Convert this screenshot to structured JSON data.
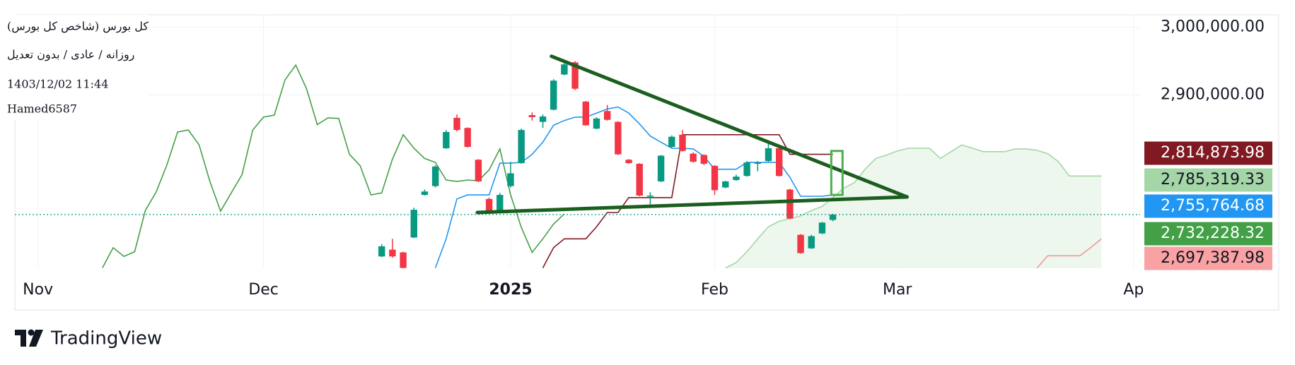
{
  "header": {
    "title": "کل بورس (شاخص کل بورس)",
    "subtitle": "روزانه / عادی / بدون تعدیل",
    "timestamp": "1403/12/02 11:44",
    "author": "Hamed6587"
  },
  "footer": {
    "brand": "TradingView"
  },
  "chart_data": {
    "type": "candlestick",
    "up_color": "#089981",
    "down_color": "#f23645",
    "xlim": [
      -2.15,
      102.6
    ],
    "xticks": [
      {
        "value": 0,
        "label": "Nov"
      },
      {
        "value": 21,
        "label": "Dec"
      },
      {
        "value": 44,
        "label": "2025"
      },
      {
        "value": 63,
        "label": "Feb"
      },
      {
        "value": 80,
        "label": "Mar"
      },
      {
        "value": 102,
        "label": "Ap"
      }
    ],
    "ylim": [
      2643500,
      3018300
    ],
    "yticks": [
      {
        "value": 3000000,
        "label": "3,000,000.00"
      },
      {
        "value": 2900000,
        "label": "2,900,000.00"
      }
    ],
    "grid": true,
    "x": [
      32,
      33,
      34,
      35,
      36,
      37,
      38,
      39,
      40,
      41,
      42,
      43,
      44,
      45,
      46,
      47,
      48,
      49,
      50,
      51,
      52,
      53,
      54,
      55,
      56,
      57,
      58,
      59,
      60,
      61,
      62,
      63,
      64,
      65,
      66,
      67,
      68,
      69,
      70,
      71,
      72,
      73,
      74
    ],
    "open": [
      2661000,
      2671000,
      2667000,
      2689000,
      2752000,
      2765000,
      2821000,
      2866000,
      2851000,
      2804000,
      2746000,
      2729000,
      2765000,
      2799000,
      2870000,
      2860000,
      2878000,
      2930000,
      2948000,
      2890000,
      2850000,
      2876000,
      2860000,
      2804000,
      2798000,
      2750000,
      2772000,
      2823000,
      2841000,
      2813000,
      2811000,
      2795000,
      2763000,
      2774000,
      2780000,
      2798000,
      2802000,
      2821000,
      2760000,
      2693000,
      2673000,
      2695000,
      2715000
    ],
    "high": [
      2679000,
      2687000,
      2668000,
      2733000,
      2760000,
      2796000,
      2848000,
      2871000,
      2852000,
      2805000,
      2748000,
      2755000,
      2801000,
      2850000,
      2874000,
      2871000,
      2923000,
      2952000,
      2950000,
      2891000,
      2867000,
      2885000,
      2861000,
      2805000,
      2799000,
      2756000,
      2811000,
      2840000,
      2848000,
      2815000,
      2812000,
      2796000,
      2773000,
      2782000,
      2802000,
      2802000,
      2828000,
      2823000,
      2761000,
      2694000,
      2693000,
      2712000,
      2724000
    ],
    "low": [
      2660000,
      2659000,
      2643000,
      2688000,
      2751000,
      2763000,
      2820000,
      2846000,
      2822000,
      2771000,
      2726000,
      2728000,
      2763000,
      2798000,
      2862000,
      2851000,
      2877000,
      2929000,
      2907000,
      2854000,
      2849000,
      2862000,
      2811000,
      2798000,
      2750000,
      2738000,
      2771000,
      2822000,
      2816000,
      2800000,
      2796000,
      2752000,
      2762000,
      2773000,
      2779000,
      2787000,
      2801000,
      2779000,
      2716000,
      2665000,
      2672000,
      2694000,
      2713000
    ],
    "close": [
      2676000,
      2661000,
      2644000,
      2730000,
      2757000,
      2794000,
      2845000,
      2848000,
      2823000,
      2772000,
      2727000,
      2752000,
      2784000,
      2848000,
      2867000,
      2868000,
      2921000,
      2945000,
      2909000,
      2855000,
      2865000,
      2863000,
      2812000,
      2799000,
      2751000,
      2751000,
      2810000,
      2838000,
      2817000,
      2801000,
      2798000,
      2759000,
      2772000,
      2779000,
      2800000,
      2800000,
      2821000,
      2780000,
      2717000,
      2666000,
      2691000,
      2711000,
      2723000
    ],
    "last_price_line": true,
    "lines": [
      {
        "color": "#a5d6a7",
        "fill": "#e8f5e9",
        "x": [
          64,
          65,
          66,
          67,
          68,
          69,
          70,
          71,
          72,
          73,
          74,
          75,
          76,
          77,
          78,
          79,
          80,
          81,
          82,
          83,
          84,
          85,
          86,
          87,
          88,
          89,
          90,
          91,
          92,
          93,
          94,
          95,
          96,
          97,
          98,
          99
        ],
        "values": [
          2644000,
          2652000,
          2668000,
          2687000,
          2705000,
          2713000,
          2717000,
          2721000,
          2729000,
          2735000,
          2748000,
          2762000,
          2770000,
          2790000,
          2806000,
          2811000,
          2817000,
          2821000,
          2821000,
          2821000,
          2806000,
          2816000,
          2826000,
          2821000,
          2816000,
          2816000,
          2816000,
          2820000,
          2820000,
          2818000,
          2813000,
          2801000,
          2780000,
          2780000,
          2780000,
          2780000
        ]
      },
      {
        "color": "#ef9a9a",
        "x": [
          93,
          94,
          95,
          96,
          97,
          98,
          99
        ],
        "values": [
          2644000,
          2662000,
          2662000,
          2662000,
          2662000,
          2674000,
          2687000
        ]
      },
      {
        "color": "#43a047",
        "x": [
          6,
          7,
          8,
          9,
          10,
          11,
          12,
          13,
          14,
          15,
          16,
          17,
          18,
          19,
          20,
          21,
          22,
          23,
          24,
          25,
          26,
          27,
          28,
          29,
          30,
          31,
          32,
          33,
          34,
          35,
          36,
          37,
          38,
          39,
          40,
          41,
          42,
          43,
          44,
          45,
          46,
          47,
          48,
          49
        ],
        "values": [
          2644000,
          2674000,
          2661000,
          2668000,
          2729000,
          2756000,
          2796000,
          2845000,
          2848000,
          2826000,
          2772000,
          2728000,
          2755000,
          2782000,
          2848000,
          2867000,
          2870000,
          2922000,
          2944000,
          2909000,
          2856000,
          2866000,
          2865000,
          2812000,
          2795000,
          2752000,
          2755000,
          2805000,
          2841000,
          2821000,
          2806000,
          2800000,
          2774000,
          2772000,
          2774000,
          2773000,
          2789000,
          2820000,
          2752000,
          2704000,
          2667000,
          2687000,
          2709000,
          2724000
        ]
      },
      {
        "color": "#2196f3",
        "x": [
          37,
          38,
          39,
          40,
          41,
          42,
          43,
          44,
          45,
          46,
          47,
          48,
          49,
          50,
          51,
          52,
          53,
          54,
          55,
          56,
          57,
          58,
          59,
          60,
          61,
          62,
          63,
          64,
          65,
          66,
          67,
          68,
          69,
          70,
          71,
          72,
          73,
          74
        ],
        "values": [
          2644000,
          2687000,
          2746000,
          2752000,
          2752000,
          2752000,
          2799000,
          2799000,
          2800000,
          2812000,
          2830000,
          2855000,
          2862000,
          2867000,
          2867000,
          2873000,
          2879000,
          2882000,
          2873000,
          2857000,
          2839000,
          2830000,
          2821000,
          2821000,
          2820000,
          2809000,
          2790000,
          2790000,
          2790000,
          2800000,
          2800000,
          2800000,
          2800000,
          2778000,
          2750000,
          2750000,
          2750000,
          2752000
        ]
      },
      {
        "color": "#801922",
        "x": [
          47,
          48,
          49,
          50,
          51,
          52,
          53,
          54,
          55,
          56,
          57,
          58,
          59,
          60,
          61,
          62,
          63,
          64,
          65,
          66,
          67,
          68,
          69,
          70,
          71,
          72,
          73,
          74
        ],
        "values": [
          2644000,
          2674000,
          2687000,
          2687000,
          2687000,
          2705000,
          2726000,
          2726000,
          2748000,
          2748000,
          2748000,
          2748000,
          2748000,
          2841000,
          2841000,
          2841000,
          2841000,
          2841000,
          2841000,
          2841000,
          2841000,
          2841000,
          2841000,
          2812000,
          2812000,
          2812000,
          2812000,
          2812000
        ]
      }
    ],
    "trendlines": [
      {
        "color": "#1b5e20",
        "x": [
          47.8,
          80.9
        ],
        "values": [
          2957000,
          2749000
        ]
      },
      {
        "color": "#1b5e20",
        "x": [
          40.9,
          80.9
        ],
        "values": [
          2726000,
          2749000
        ]
      }
    ],
    "rectangle": {
      "color": "#4caf50",
      "x": [
        73.85,
        74.9
      ],
      "values": [
        2817000,
        2752000
      ]
    },
    "price_labels": [
      {
        "value": 2814873.98,
        "label": "2,814,873.98",
        "color": "#801922",
        "text_color": "#ffffff"
      },
      {
        "value": 2785319.33,
        "label": "2,785,319.33",
        "color": "#a5d6a7",
        "text_color": "#131722"
      },
      {
        "value": 2755764.68,
        "label": "2,755,764.68",
        "color": "#2196f3",
        "text_color": "#ffffff"
      },
      {
        "value": 2732228.32,
        "label": "2,732,228.32",
        "color": "#43a047",
        "text_color": "#ffffff"
      },
      {
        "value": 2697387.98,
        "label": "2,697,387.98",
        "color": "#faa1a4",
        "text_color": "#131722"
      }
    ]
  }
}
